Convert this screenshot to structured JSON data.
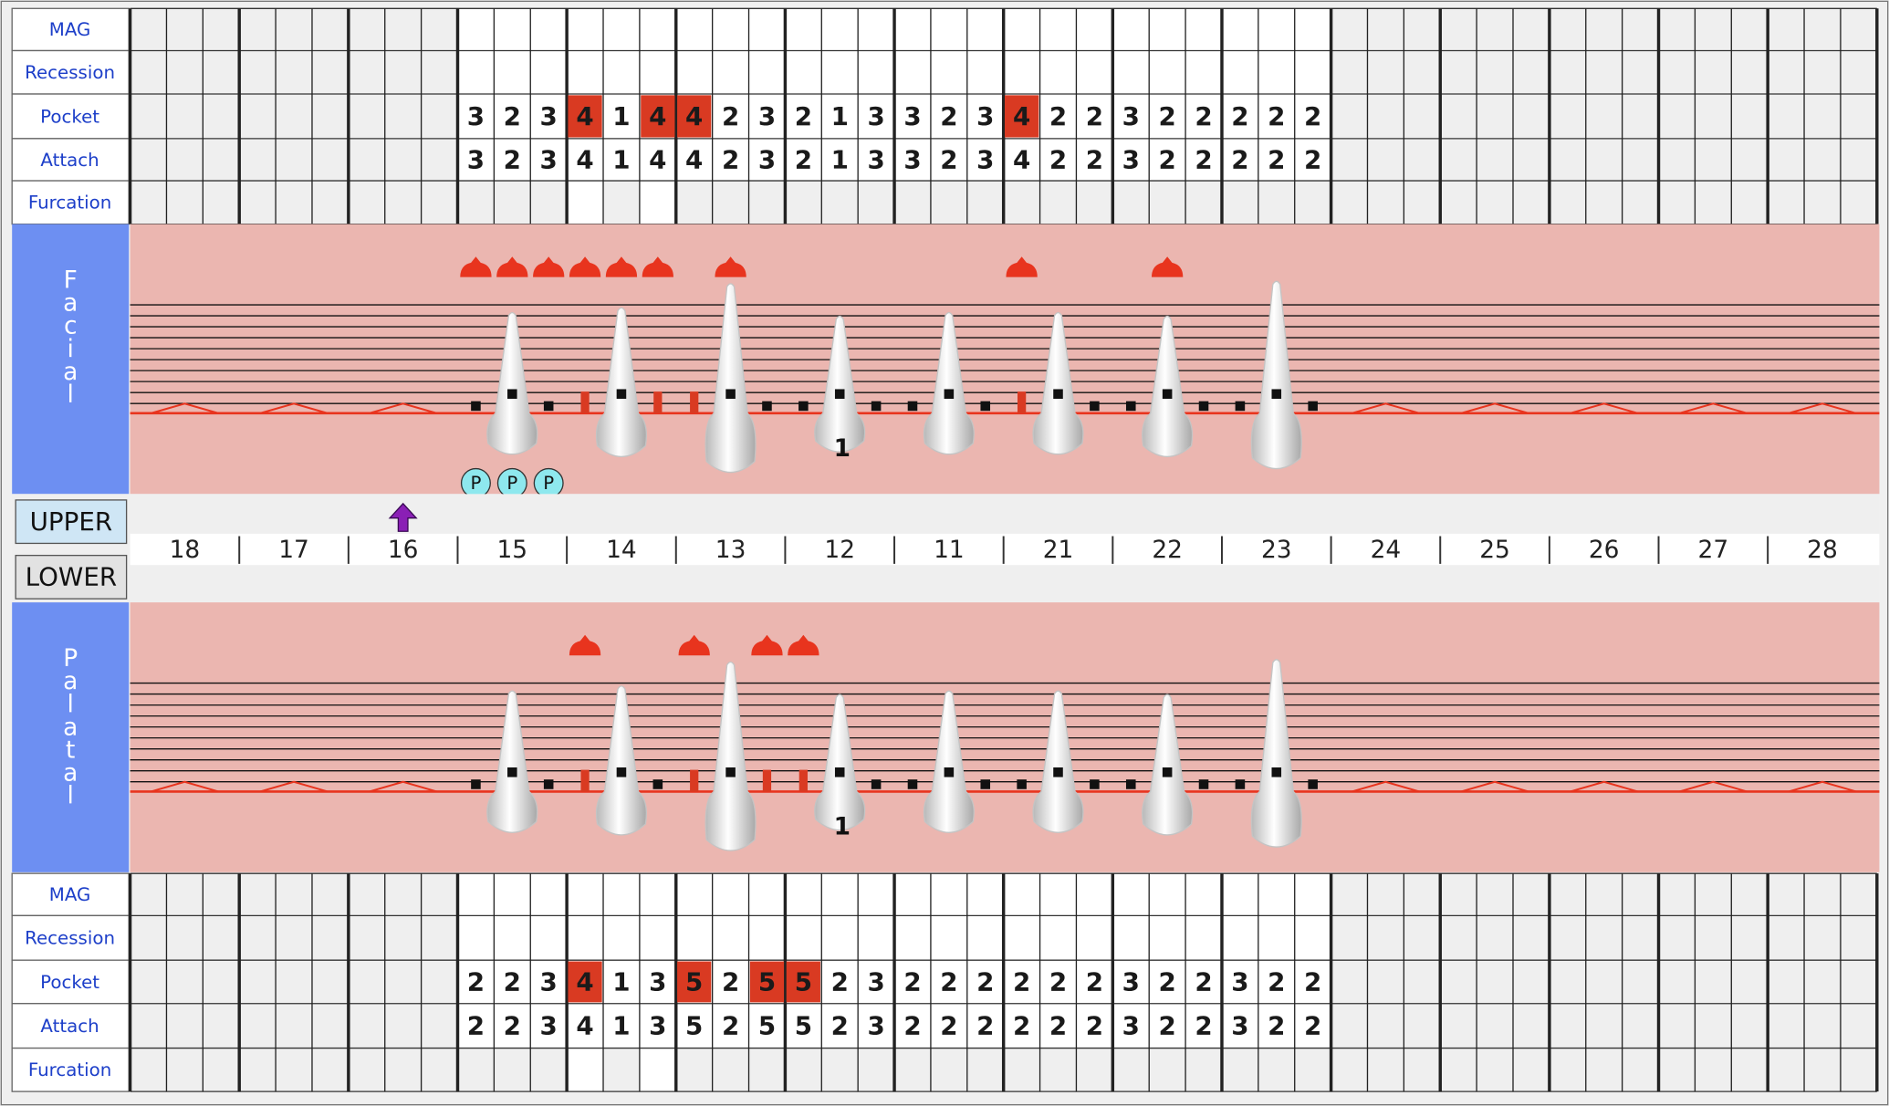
{
  "row_labels": [
    "MAG",
    "Recession",
    "Pocket",
    "Attach",
    "Furcation"
  ],
  "buttons": {
    "upper": "UPPER",
    "lower": "LOWER"
  },
  "pocket_alert": {
    "from": 4,
    "color": "#d93a22"
  },
  "plaque_label": "P",
  "teeth": [
    {
      "number": "18",
      "present": false
    },
    {
      "number": "17",
      "present": false
    },
    {
      "number": "16",
      "present": false,
      "arrow": true
    },
    {
      "number": "15",
      "present": true
    },
    {
      "number": "14",
      "present": true,
      "furcation": true
    },
    {
      "number": "13",
      "present": true
    },
    {
      "number": "12",
      "present": true,
      "facial_note": "1",
      "palatal_note": "1"
    },
    {
      "number": "11",
      "present": true
    },
    {
      "number": "21",
      "present": true
    },
    {
      "number": "22",
      "present": true
    },
    {
      "number": "23",
      "present": true
    },
    {
      "number": "24",
      "present": false
    },
    {
      "number": "25",
      "present": false
    },
    {
      "number": "26",
      "present": false
    },
    {
      "number": "27",
      "present": false
    },
    {
      "number": "28",
      "present": false
    }
  ],
  "facial": {
    "label": "Facial",
    "pocket": [
      3,
      2,
      3,
      4,
      1,
      4,
      4,
      2,
      3,
      2,
      1,
      3,
      3,
      2,
      3,
      4,
      2,
      2,
      3,
      2,
      2,
      2,
      2,
      2
    ],
    "attach": [
      3,
      2,
      3,
      4,
      1,
      4,
      4,
      2,
      3,
      2,
      1,
      3,
      3,
      2,
      3,
      4,
      2,
      2,
      3,
      2,
      2,
      2,
      2,
      2
    ],
    "bleeding": [
      0,
      1,
      2,
      3,
      4,
      5,
      7,
      15,
      19
    ],
    "plaque": [
      0,
      1,
      2
    ]
  },
  "palatal": {
    "label": "Palatal",
    "pocket": [
      2,
      2,
      3,
      4,
      1,
      3,
      5,
      2,
      5,
      5,
      2,
      3,
      2,
      2,
      2,
      2,
      2,
      2,
      3,
      2,
      2,
      3,
      2,
      2
    ],
    "attach": [
      2,
      2,
      3,
      4,
      1,
      3,
      5,
      2,
      5,
      5,
      2,
      3,
      2,
      2,
      2,
      2,
      2,
      2,
      3,
      2,
      2,
      3,
      2,
      2
    ],
    "bleeding": [
      3,
      6,
      8,
      9
    ],
    "plaque": []
  }
}
